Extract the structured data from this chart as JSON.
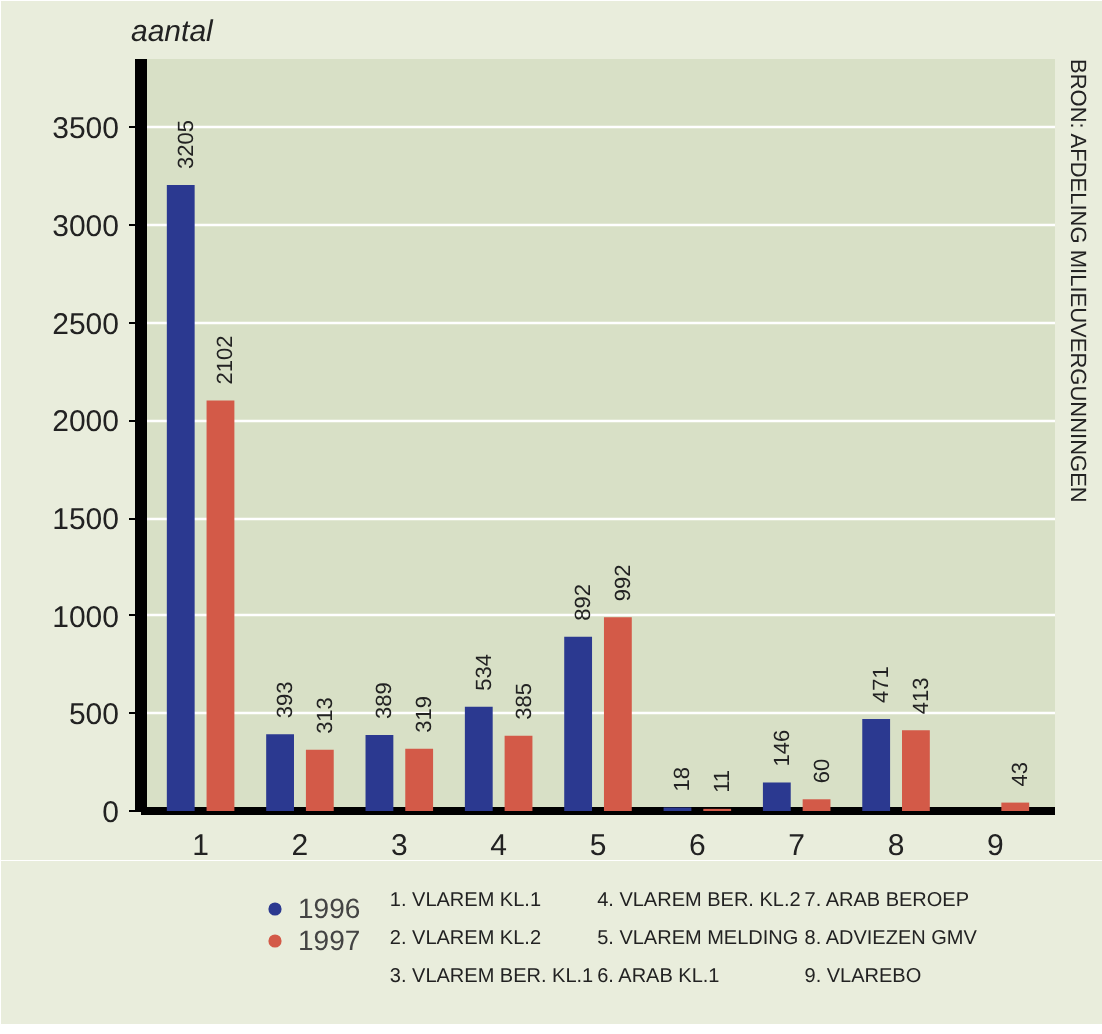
{
  "chart_data": {
    "type": "bar",
    "ylabel": "aantal",
    "categories": [
      "1",
      "2",
      "3",
      "4",
      "5",
      "6",
      "7",
      "8",
      "9"
    ],
    "series": [
      {
        "name": "1996",
        "color": "#2b3990",
        "values": [
          3205,
          393,
          389,
          534,
          892,
          18,
          146,
          471,
          null
        ]
      },
      {
        "name": "1997",
        "color": "#d35a48",
        "values": [
          2102,
          313,
          319,
          385,
          992,
          11,
          60,
          413,
          43
        ]
      }
    ],
    "data_labels": true,
    "ylim": [
      0,
      3850
    ],
    "yticks": [
      0,
      500,
      1000,
      1500,
      2000,
      2500,
      3000,
      3500
    ],
    "grid": "y",
    "legend": "bottom left",
    "annotations": [
      "1. VLAREM KL.1",
      "2. VLAREM KL.2",
      "3. VLAREM BER. KL.1",
      "4. VLAREM BER. KL.2",
      "5. VLAREM MELDING",
      "6. ARAB KL.1",
      "7. ARAB BEROEP",
      "8. ADVIEZEN GMV",
      "9. VLAREBO",
      "BRON: AFDELING MILIEUVERGUNNINGEN"
    ]
  }
}
